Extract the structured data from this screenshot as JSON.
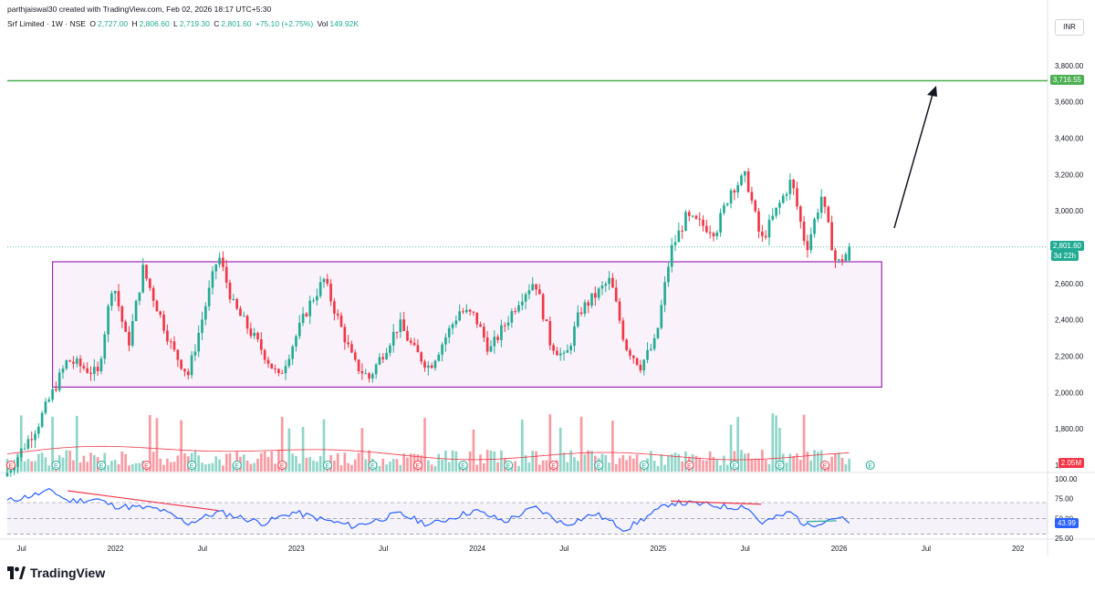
{
  "header": {
    "credit": "parthjaiswal30 created with TradingView.com, Feb 02, 2026 18:17 UTC+5:30",
    "symbol": "Srf Limited · 1W · NSE",
    "o_label": "O",
    "o": "2,727.00",
    "h_label": "H",
    "h": "2,806.60",
    "l_label": "L",
    "l": "2,719.30",
    "c_label": "C",
    "c": "2,801.60",
    "change": "+75.10 (+2.75%)",
    "vol_label": "Vol",
    "vol": "149.92K"
  },
  "currency": "INR",
  "branding": "TradingView",
  "price_axis": {
    "ticks": [
      "3,800.00",
      "3,600.00",
      "3,400.00",
      "3,200.00",
      "3,000.00",
      "2,800.00",
      "2,600.00",
      "2,400.00",
      "2,200.00",
      "2,000.00",
      "1,800.00",
      "1,600.00"
    ],
    "tags": {
      "target": "3,716.55",
      "last": "2,801.60",
      "countdown": "3d 22h",
      "volume": "2.05M"
    }
  },
  "rsi_axis": {
    "ticks": [
      "100.00",
      "75.00",
      "50.00",
      "25.00"
    ],
    "value_tag": "43.99"
  },
  "time_axis": [
    "Jul",
    "2022",
    "Jul",
    "2023",
    "Jul",
    "2024",
    "Jul",
    "2025",
    "Jul",
    "2026",
    "Jul",
    "202"
  ],
  "colors": {
    "up": "#22ab94",
    "down": "#f23645",
    "rect": "#9c27b0",
    "target": "#4caf50",
    "rsi": "#2962ff",
    "ma": "#f23645"
  },
  "chart_data": {
    "type": "candlestick",
    "symbol": "Srf Limited",
    "interval": "1W",
    "exchange": "NSE",
    "currency": "INR",
    "ylim": [
      1550,
      3960
    ],
    "last_price": 2801.6,
    "target_line": 3716.55,
    "consolidation_range": {
      "low": 2030,
      "high": 2720,
      "from": "2021-09",
      "to": "2026-04"
    },
    "anchors": [
      [
        "2021-06",
        1560
      ],
      [
        "2021-08",
        1820
      ],
      [
        "2021-10",
        2180
      ],
      [
        "2021-12",
        2100
      ],
      [
        "2022-01",
        2620
      ],
      [
        "2022-02",
        2250
      ],
      [
        "2022-03",
        2680
      ],
      [
        "2022-05",
        2230
      ],
      [
        "2022-06",
        2100
      ],
      [
        "2022-08",
        2760
      ],
      [
        "2022-09",
        2480
      ],
      [
        "2022-11",
        2220
      ],
      [
        "2022-12",
        2080
      ],
      [
        "2023-02",
        2480
      ],
      [
        "2023-03",
        2620
      ],
      [
        "2023-04",
        2390
      ],
      [
        "2023-05",
        2160
      ],
      [
        "2023-06",
        2080
      ],
      [
        "2023-08",
        2380
      ],
      [
        "2023-09",
        2230
      ],
      [
        "2023-10",
        2140
      ],
      [
        "2023-12",
        2450
      ],
      [
        "2024-01",
        2420
      ],
      [
        "2024-02",
        2230
      ],
      [
        "2024-04",
        2520
      ],
      [
        "2024-05",
        2620
      ],
      [
        "2024-06",
        2280
      ],
      [
        "2024-07",
        2180
      ],
      [
        "2024-08",
        2450
      ],
      [
        "2024-10",
        2620
      ],
      [
        "2024-11",
        2260
      ],
      [
        "2024-12",
        2150
      ],
      [
        "2025-01",
        2280
      ],
      [
        "2025-02",
        2780
      ],
      [
        "2025-03",
        2960
      ],
      [
        "2025-05",
        2890
      ],
      [
        "2025-06",
        3120
      ],
      [
        "2025-07",
        3190
      ],
      [
        "2025-08",
        2830
      ],
      [
        "2025-10",
        3170
      ],
      [
        "2025-11",
        2790
      ],
      [
        "2025-12",
        3080
      ],
      [
        "2026-01",
        2700
      ],
      [
        "2026-02",
        2801.6
      ]
    ],
    "rsi": {
      "period": 14,
      "ylim": [
        25,
        100
      ],
      "bands": [
        30,
        50,
        70
      ],
      "last": 43.99,
      "anchors": [
        [
          "2021-06",
          72
        ],
        [
          "2021-09",
          85
        ],
        [
          "2021-10",
          72
        ],
        [
          "2021-12",
          74
        ],
        [
          "2022-01",
          66
        ],
        [
          "2022-04",
          62
        ],
        [
          "2022-06",
          44
        ],
        [
          "2022-08",
          58
        ],
        [
          "2022-11",
          44
        ],
        [
          "2023-01",
          58
        ],
        [
          "2023-03",
          48
        ],
        [
          "2023-05",
          40
        ],
        [
          "2023-08",
          56
        ],
        [
          "2023-10",
          42
        ],
        [
          "2024-01",
          60
        ],
        [
          "2024-03",
          46
        ],
        [
          "2024-05",
          64
        ],
        [
          "2024-07",
          42
        ],
        [
          "2024-09",
          56
        ],
        [
          "2024-11",
          36
        ],
        [
          "2025-02",
          70
        ],
        [
          "2025-04",
          68
        ],
        [
          "2025-06",
          64
        ],
        [
          "2025-07",
          66
        ],
        [
          "2025-08",
          44
        ],
        [
          "2025-10",
          58
        ],
        [
          "2025-11",
          40
        ],
        [
          "2026-01",
          52
        ],
        [
          "2026-02",
          43.99
        ]
      ]
    },
    "volume_last": "2.05M",
    "time_labels": [
      "Jul",
      "2022",
      "Jul",
      "2023",
      "Jul",
      "2024",
      "Jul",
      "2025",
      "Jul",
      "2026",
      "Jul",
      "202"
    ]
  }
}
